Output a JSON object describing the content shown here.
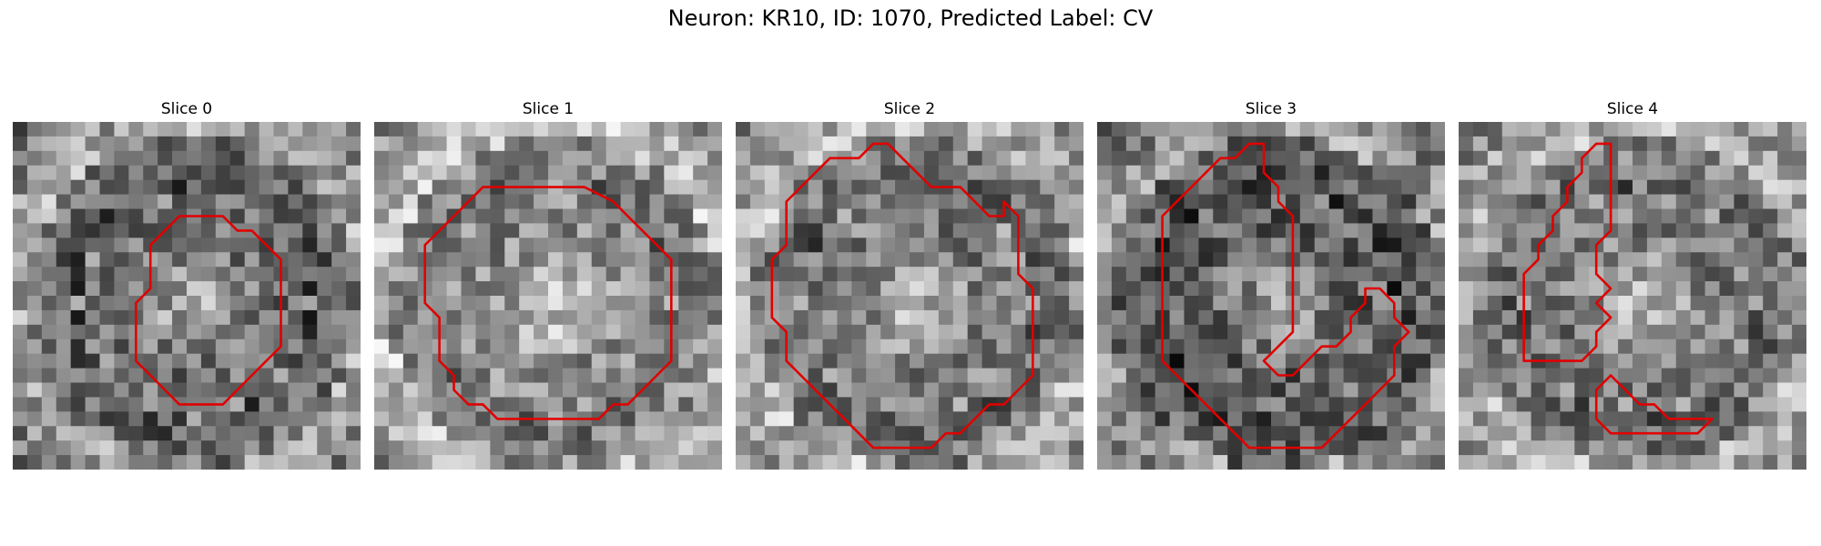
{
  "figure": {
    "title": "Neuron: KR10, ID: 1070, Predicted Label: CV"
  },
  "contour_color": "#e00000",
  "grid_size": 24,
  "panels": [
    {
      "title": "Slice 0",
      "contour": [
        [
          9.5,
          11.5
        ],
        [
          9.5,
          8.5
        ],
        [
          10.5,
          7.5
        ],
        [
          11.5,
          6.5
        ],
        [
          12.5,
          6.5
        ],
        [
          13.5,
          6.5
        ],
        [
          14.5,
          6.5
        ],
        [
          15.5,
          7.5
        ],
        [
          16.5,
          7.5
        ],
        [
          17.5,
          8.5
        ],
        [
          18.5,
          9.5
        ],
        [
          18.5,
          10.5
        ],
        [
          18.5,
          11.5
        ],
        [
          18.5,
          13.5
        ],
        [
          18.5,
          15.5
        ],
        [
          17.5,
          16.5
        ],
        [
          16.5,
          17.5
        ],
        [
          15.5,
          18.5
        ],
        [
          14.5,
          19.5
        ],
        [
          11.5,
          19.5
        ],
        [
          10.5,
          18.5
        ],
        [
          9.5,
          17.5
        ],
        [
          8.5,
          16.5
        ],
        [
          8.5,
          15.5
        ],
        [
          8.5,
          12.5
        ]
      ],
      "shade": 0.55
    },
    {
      "title": "Slice 1",
      "contour": [
        [
          5.5,
          6.5
        ],
        [
          7.5,
          4.5
        ],
        [
          9.5,
          4.5
        ],
        [
          11.5,
          4.5
        ],
        [
          14.5,
          4.5
        ],
        [
          16.5,
          5.5
        ],
        [
          17.5,
          6.5
        ],
        [
          18.5,
          7.5
        ],
        [
          19.5,
          8.5
        ],
        [
          20.5,
          9.5
        ],
        [
          20.5,
          11.5
        ],
        [
          20.5,
          14.5
        ],
        [
          20.5,
          16.5
        ],
        [
          19.5,
          17.5
        ],
        [
          18.5,
          18.5
        ],
        [
          17.5,
          19.5
        ],
        [
          16.5,
          19.5
        ],
        [
          15.5,
          20.5
        ],
        [
          14.5,
          20.5
        ],
        [
          11.5,
          20.5
        ],
        [
          9.5,
          20.5
        ],
        [
          8.5,
          20.5
        ],
        [
          7.5,
          19.5
        ],
        [
          6.5,
          19.5
        ],
        [
          5.5,
          18.5
        ],
        [
          5.5,
          17.5
        ],
        [
          4.5,
          16.5
        ],
        [
          4.5,
          15.5
        ],
        [
          4.5,
          13.5
        ],
        [
          3.5,
          12.5
        ],
        [
          3.5,
          11.5
        ],
        [
          3.5,
          8.5
        ],
        [
          4.5,
          7.5
        ]
      ],
      "shade": 0.65
    },
    {
      "title": "Slice 2",
      "contour": [
        [
          3.5,
          5.5
        ],
        [
          5.5,
          3.5
        ],
        [
          6.5,
          2.5
        ],
        [
          7.5,
          2.5
        ],
        [
          8.5,
          2.5
        ],
        [
          9.5,
          1.5
        ],
        [
          10.5,
          1.5
        ],
        [
          11.5,
          2.5
        ],
        [
          12.5,
          3.5
        ],
        [
          13.5,
          4.5
        ],
        [
          14.5,
          4.5
        ],
        [
          15.5,
          4.5
        ],
        [
          16.5,
          5.5
        ],
        [
          17.5,
          6.5
        ],
        [
          18.5,
          6.5
        ],
        [
          18.5,
          5.5
        ],
        [
          19.5,
          6.5
        ],
        [
          19.5,
          8.5
        ],
        [
          19.5,
          10.5
        ],
        [
          20.5,
          11.5
        ],
        [
          20.5,
          13.5
        ],
        [
          20.5,
          15.5
        ],
        [
          20.5,
          17.5
        ],
        [
          19.5,
          18.5
        ],
        [
          18.5,
          19.5
        ],
        [
          17.5,
          19.5
        ],
        [
          16.5,
          20.5
        ],
        [
          15.5,
          21.5
        ],
        [
          14.5,
          21.5
        ],
        [
          13.5,
          22.5
        ],
        [
          11.5,
          22.5
        ],
        [
          10.5,
          22.5
        ],
        [
          9.5,
          22.5
        ],
        [
          8.5,
          21.5
        ],
        [
          7.5,
          20.5
        ],
        [
          6.5,
          19.5
        ],
        [
          5.5,
          18.5
        ],
        [
          4.5,
          17.5
        ],
        [
          3.5,
          16.5
        ],
        [
          3.5,
          14.5
        ],
        [
          2.5,
          13.5
        ],
        [
          2.5,
          11.5
        ],
        [
          2.5,
          9.5
        ],
        [
          3.5,
          8.5
        ]
      ],
      "shade": 0.6
    },
    {
      "title": "Slice 3",
      "contour": [
        [
          4.5,
          6.5
        ],
        [
          5.5,
          5.5
        ],
        [
          6.5,
          4.5
        ],
        [
          7.5,
          3.5
        ],
        [
          8.5,
          2.5
        ],
        [
          9.5,
          2.5
        ],
        [
          10.5,
          1.5
        ],
        [
          11.5,
          1.5
        ],
        [
          11.5,
          2.5
        ],
        [
          11.5,
          3.5
        ],
        [
          12.5,
          4.5
        ],
        [
          12.5,
          5.5
        ],
        [
          13.5,
          6.5
        ],
        [
          13.5,
          8.5
        ],
        [
          13.5,
          10.5
        ],
        [
          13.5,
          12.5
        ],
        [
          13.5,
          14.5
        ],
        [
          12.5,
          15.5
        ],
        [
          11.5,
          16.5
        ],
        [
          12.5,
          17.5
        ],
        [
          13.5,
          17.5
        ],
        [
          14.5,
          16.5
        ],
        [
          15.5,
          15.5
        ],
        [
          16.5,
          15.5
        ],
        [
          17.5,
          14.5
        ],
        [
          17.5,
          13.5
        ],
        [
          18.5,
          12.5
        ],
        [
          18.5,
          11.5
        ],
        [
          19.5,
          11.5
        ],
        [
          20.5,
          12.5
        ],
        [
          20.5,
          13.5
        ],
        [
          21.5,
          14.5
        ],
        [
          20.5,
          15.5
        ],
        [
          20.5,
          17.5
        ],
        [
          19.5,
          18.5
        ],
        [
          18.5,
          19.5
        ],
        [
          17.5,
          20.5
        ],
        [
          16.5,
          21.5
        ],
        [
          15.5,
          22.5
        ],
        [
          13.5,
          22.5
        ],
        [
          11.5,
          22.5
        ],
        [
          10.5,
          22.5
        ],
        [
          9.5,
          21.5
        ],
        [
          8.5,
          20.5
        ],
        [
          7.5,
          19.5
        ],
        [
          6.5,
          18.5
        ],
        [
          5.5,
          17.5
        ],
        [
          4.5,
          16.5
        ],
        [
          4.5,
          14.5
        ],
        [
          4.5,
          12.5
        ],
        [
          4.5,
          10.5
        ],
        [
          4.5,
          8.5
        ]
      ],
      "shade": 0.5
    },
    {
      "title": "Slice 4",
      "contour": [
        [
          4.5,
          10.5
        ],
        [
          5.5,
          9.5
        ],
        [
          5.5,
          8.5
        ],
        [
          6.5,
          7.5
        ],
        [
          6.5,
          6.5
        ],
        [
          7.5,
          5.5
        ],
        [
          7.5,
          4.5
        ],
        [
          8.5,
          3.5
        ],
        [
          8.5,
          2.5
        ],
        [
          9.5,
          1.5
        ],
        [
          10.5,
          1.5
        ],
        [
          10.5,
          3.5
        ],
        [
          10.5,
          5.5
        ],
        [
          10.5,
          7.5
        ],
        [
          9.5,
          8.5
        ],
        [
          9.5,
          10.5
        ],
        [
          10.5,
          11.5
        ],
        [
          9.5,
          12.5
        ],
        [
          10.5,
          13.5
        ],
        [
          9.5,
          14.5
        ],
        [
          9.5,
          15.5
        ],
        [
          8.5,
          16.5
        ],
        [
          6.5,
          16.5
        ],
        [
          4.5,
          16.5
        ],
        [
          4.5,
          14.5
        ],
        [
          4.5,
          12.5
        ]
      ],
      "contour2": [
        [
          9.5,
          18.5
        ],
        [
          10.5,
          17.5
        ],
        [
          11.5,
          18.5
        ],
        [
          12.5,
          19.5
        ],
        [
          13.5,
          19.5
        ],
        [
          14.5,
          20.5
        ],
        [
          16.5,
          20.5
        ],
        [
          17.5,
          20.5
        ],
        [
          16.5,
          21.5
        ],
        [
          14.5,
          21.5
        ],
        [
          12.5,
          21.5
        ],
        [
          10.5,
          21.5
        ],
        [
          9.5,
          20.5
        ]
      ],
      "shade": 0.6
    }
  ]
}
